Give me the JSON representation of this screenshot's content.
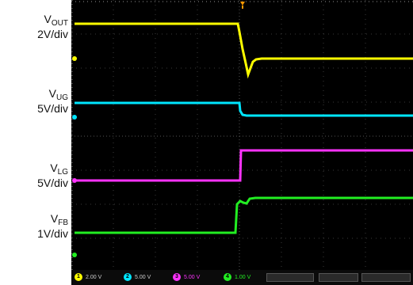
{
  "labels": {
    "vout": {
      "main": "V",
      "sub": "OUT",
      "scale": "2V/div"
    },
    "vug": {
      "main": "V",
      "sub": "UG",
      "scale": "5V/div"
    },
    "vlg": {
      "main": "V",
      "sub": "LG",
      "scale": "5V/div"
    },
    "vfb": {
      "main": "V",
      "sub": "FB",
      "scale": "1V/div"
    }
  },
  "colors": {
    "screen": "#000000",
    "grid": "#3a3a3a",
    "ch1": "#ffff00",
    "ch2": "#00e6ff",
    "ch3": "#ff33ff",
    "ch4": "#22ee22",
    "trigger": "#ff9900"
  },
  "footer": {
    "ch1": {
      "num": "1",
      "value": "2.00 V"
    },
    "ch2": {
      "num": "2",
      "value": "5.00 V"
    },
    "ch3": {
      "num": "3",
      "value": "5.00 V"
    },
    "ch4": {
      "num": "4",
      "value": "1.00 V"
    }
  },
  "icons": [
    "trigger-marker-icon",
    "channel-marker-icon"
  ]
}
